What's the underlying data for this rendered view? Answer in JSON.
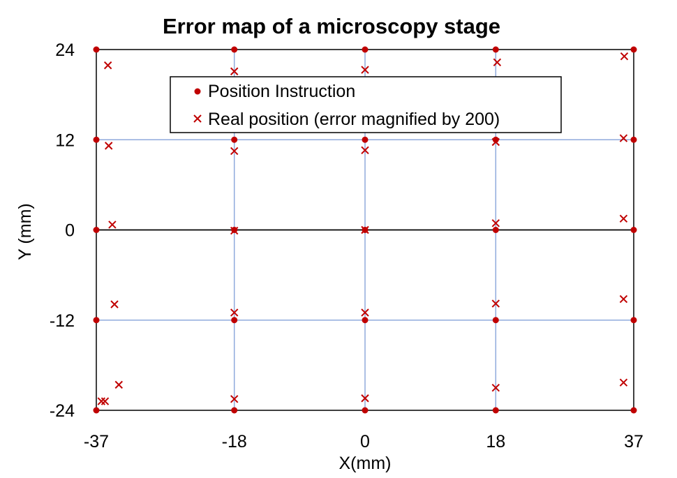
{
  "chart_data": {
    "type": "scatter",
    "title": "Error map of a microscopy stage",
    "xlabel": "X(mm)",
    "ylabel": "Y (mm)",
    "xlim": [
      -37,
      37
    ],
    "ylim": [
      -24,
      24
    ],
    "x_ticks": [
      {
        "value": -37,
        "label": "-37"
      },
      {
        "value": -18,
        "label": "-18"
      },
      {
        "value": 0,
        "label": "0"
      },
      {
        "value": 18,
        "label": "18"
      },
      {
        "value": 37,
        "label": "37"
      }
    ],
    "y_ticks": [
      {
        "value": 24,
        "label": "24"
      },
      {
        "value": 12,
        "label": "12"
      },
      {
        "value": 0,
        "label": "0"
      },
      {
        "value": -12,
        "label": "-12"
      },
      {
        "value": -24,
        "label": "-24"
      }
    ],
    "grid": true,
    "legend_position": "top-center",
    "colors": {
      "marker": "#c00000",
      "grid": "#8faadc",
      "axis": "#000000"
    },
    "series": [
      {
        "name": "Position Instruction",
        "marker": "circle",
        "points": [
          [
            -37,
            24
          ],
          [
            -18,
            24
          ],
          [
            0,
            24
          ],
          [
            18,
            24
          ],
          [
            37,
            24
          ],
          [
            -37,
            12
          ],
          [
            -18,
            12
          ],
          [
            0,
            12
          ],
          [
            18,
            12
          ],
          [
            37,
            12
          ],
          [
            -37,
            0
          ],
          [
            -18,
            0
          ],
          [
            0,
            0
          ],
          [
            18,
            0
          ],
          [
            37,
            0
          ],
          [
            -37,
            -12
          ],
          [
            -18,
            -12
          ],
          [
            0,
            -12
          ],
          [
            18,
            -12
          ],
          [
            37,
            -12
          ],
          [
            -37,
            -24
          ],
          [
            -18,
            -24
          ],
          [
            0,
            -24
          ],
          [
            18,
            -24
          ],
          [
            37,
            -24
          ]
        ]
      },
      {
        "name": "Real position (error magnified by 200)",
        "marker": "x",
        "points": [
          [
            -35.4,
            21.9
          ],
          [
            -18.0,
            21.1
          ],
          [
            0.0,
            21.3
          ],
          [
            18.2,
            22.3
          ],
          [
            35.7,
            23.1
          ],
          [
            -35.3,
            11.2
          ],
          [
            -18.0,
            10.5
          ],
          [
            0.0,
            10.6
          ],
          [
            18.0,
            11.7
          ],
          [
            35.6,
            12.2
          ],
          [
            -34.8,
            0.7
          ],
          [
            -18.0,
            -0.1
          ],
          [
            0.0,
            0.0
          ],
          [
            18.0,
            0.9
          ],
          [
            35.6,
            1.5
          ],
          [
            -34.5,
            -9.9
          ],
          [
            -18.0,
            -11.0
          ],
          [
            0.0,
            -11.0
          ],
          [
            18.0,
            -9.8
          ],
          [
            35.6,
            -9.2
          ],
          [
            -36.3,
            -22.8
          ],
          [
            -35.8,
            -22.8
          ],
          [
            -33.9,
            -20.6
          ],
          [
            -18.0,
            -22.5
          ],
          [
            0.0,
            -22.4
          ],
          [
            18.0,
            -21.0
          ],
          [
            35.6,
            -20.3
          ]
        ]
      }
    ]
  }
}
